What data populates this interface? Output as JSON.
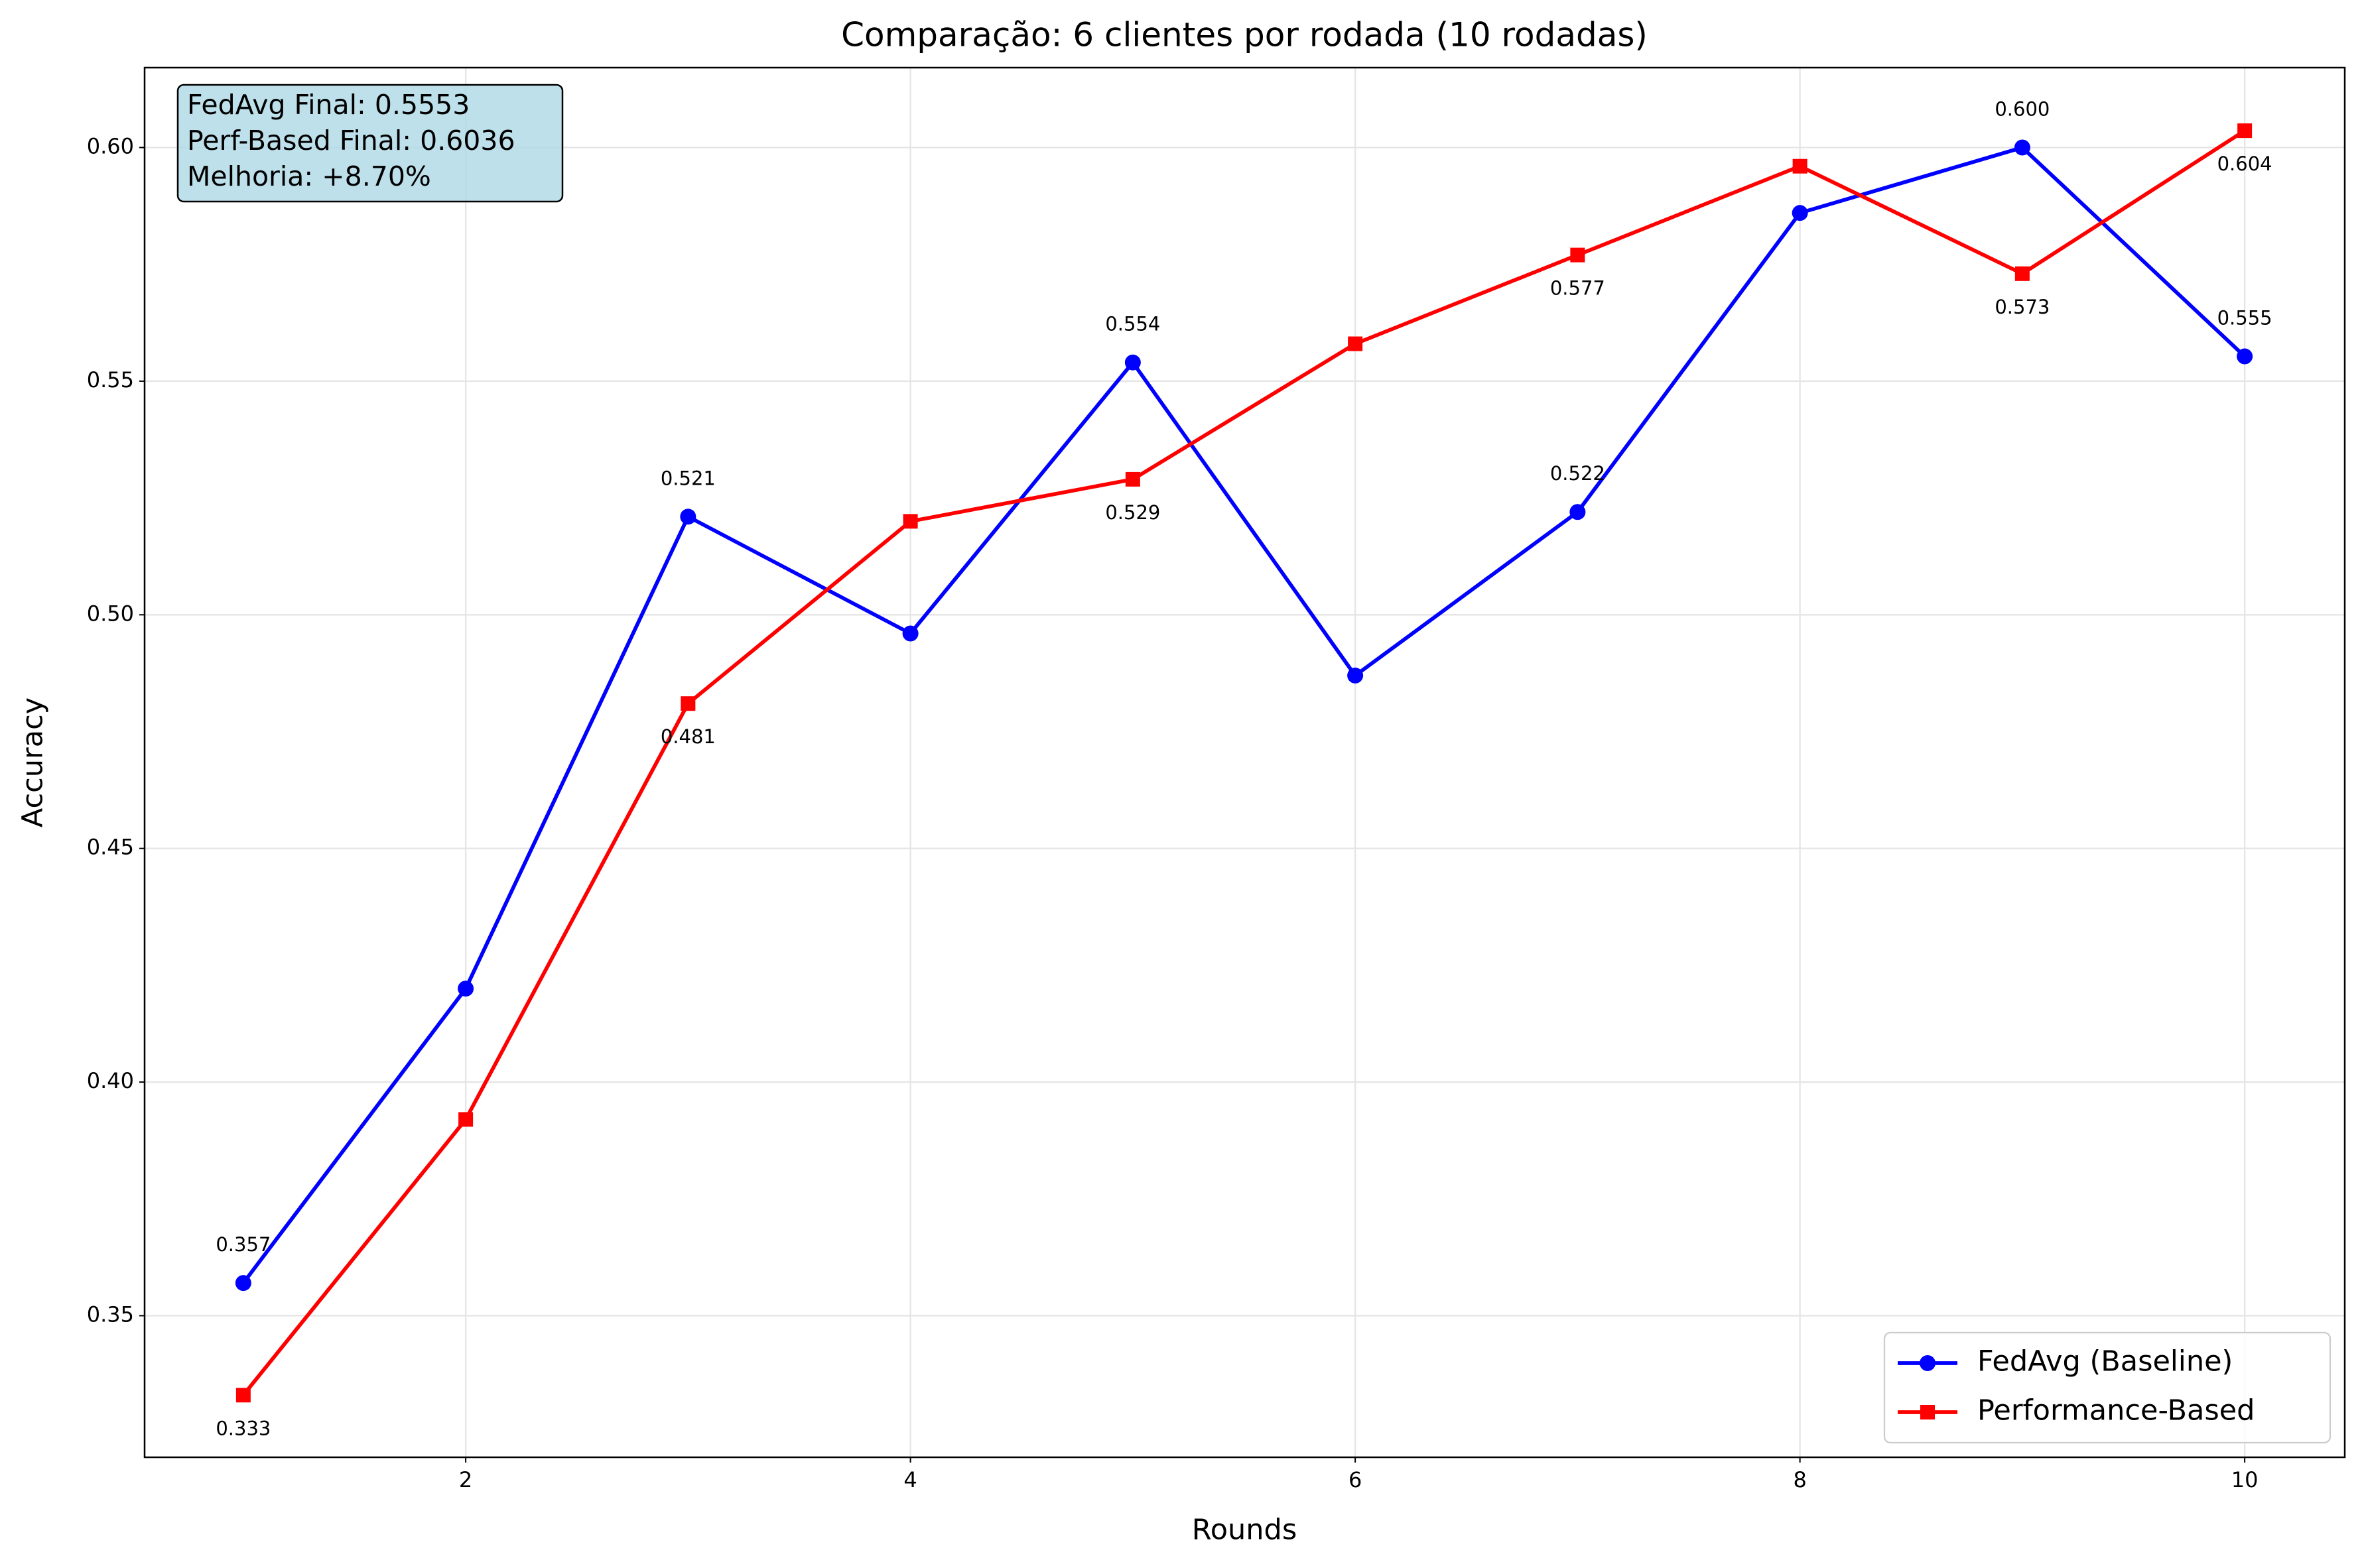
{
  "chart_data": {
    "type": "line",
    "title": "Comparação: 6 clientes por rodada (10 rodadas)",
    "xlabel": "Rounds",
    "ylabel": "Accuracy",
    "x": [
      1,
      2,
      3,
      4,
      5,
      6,
      7,
      8,
      9,
      10
    ],
    "series": [
      {
        "name": "FedAvg (Baseline)",
        "color": "#0000ff",
        "marker": "circle",
        "values": [
          0.357,
          0.42,
          0.521,
          0.496,
          0.554,
          0.487,
          0.522,
          0.586,
          0.6,
          0.5553
        ],
        "value_labels": [
          "0.357",
          null,
          "0.521",
          null,
          "0.554",
          null,
          "0.522",
          null,
          "0.600",
          "0.555"
        ]
      },
      {
        "name": "Performance-Based",
        "color": "#ff0000",
        "marker": "square",
        "values": [
          0.333,
          0.392,
          0.481,
          0.52,
          0.529,
          0.558,
          0.577,
          0.596,
          0.573,
          0.6036
        ],
        "value_labels": [
          "0.333",
          null,
          "0.481",
          null,
          "0.529",
          null,
          "0.577",
          null,
          "0.573",
          "0.604"
        ]
      }
    ],
    "xlim": [
      0.556,
      10.45
    ],
    "ylim": [
      0.3197,
      0.6171
    ],
    "xticks": [
      2,
      4,
      6,
      8,
      10
    ],
    "yticks": [
      0.35,
      {
        "value": 0.4,
        "label": "0.40"
      },
      0.45,
      {
        "value": 0.5,
        "label": "0.50"
      },
      0.55,
      {
        "value": 0.6,
        "label": "0.60"
      }
    ],
    "grid": true,
    "legend": "lower right",
    "annotation": [
      "FedAvg Final: 0.5553",
      "Perf-Based Final: 0.6036",
      "Melhoria: +8.70%"
    ]
  }
}
